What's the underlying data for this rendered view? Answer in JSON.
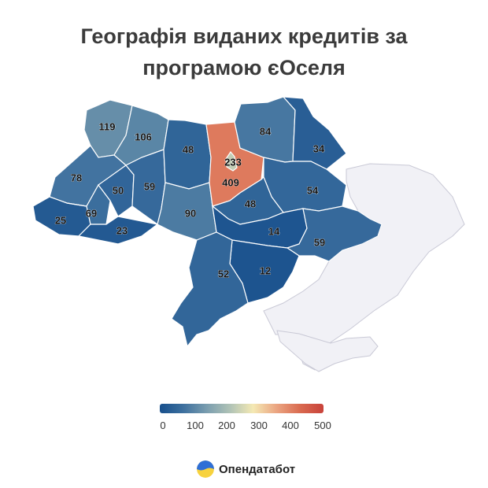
{
  "title": {
    "line1": "Географія виданих кредитів за",
    "line2": "програмою єОселя"
  },
  "legend": {
    "ticks": [
      "0",
      "100",
      "200",
      "300",
      "400",
      "500"
    ],
    "range": [
      0,
      500
    ],
    "colors": [
      "#174f8c",
      "#3c6f9e",
      "#7b9eaf",
      "#b0c3b6",
      "#f4e9b4",
      "#eba682",
      "#d9694f",
      "#c8423a"
    ]
  },
  "brand": {
    "name": "Опендатабот"
  },
  "occupied_color": "#f1f1f6",
  "regions": [
    {
      "id": "volyn",
      "value": 119
    },
    {
      "id": "rivne",
      "value": 106
    },
    {
      "id": "lviv",
      "value": 78
    },
    {
      "id": "zakarpattia",
      "value": 25
    },
    {
      "id": "ivano-frankivsk",
      "value": 69
    },
    {
      "id": "ternopil",
      "value": 50
    },
    {
      "id": "chernivtsi",
      "value": 23
    },
    {
      "id": "khmelnytskyi",
      "value": 59
    },
    {
      "id": "zhytomyr",
      "value": 48
    },
    {
      "id": "vinnytsia",
      "value": 90
    },
    {
      "id": "kyiv-city",
      "value": 233
    },
    {
      "id": "kyiv-oblast",
      "value": 409
    },
    {
      "id": "chernihiv",
      "value": 84
    },
    {
      "id": "sumy",
      "value": 34
    },
    {
      "id": "poltava",
      "value": 54
    },
    {
      "id": "cherkasy",
      "value": 48
    },
    {
      "id": "kirovohrad",
      "value": 14
    },
    {
      "id": "dnipropetrovsk",
      "value": 59
    },
    {
      "id": "mykolaiv",
      "value": 12
    },
    {
      "id": "odesa",
      "value": 52
    }
  ]
}
